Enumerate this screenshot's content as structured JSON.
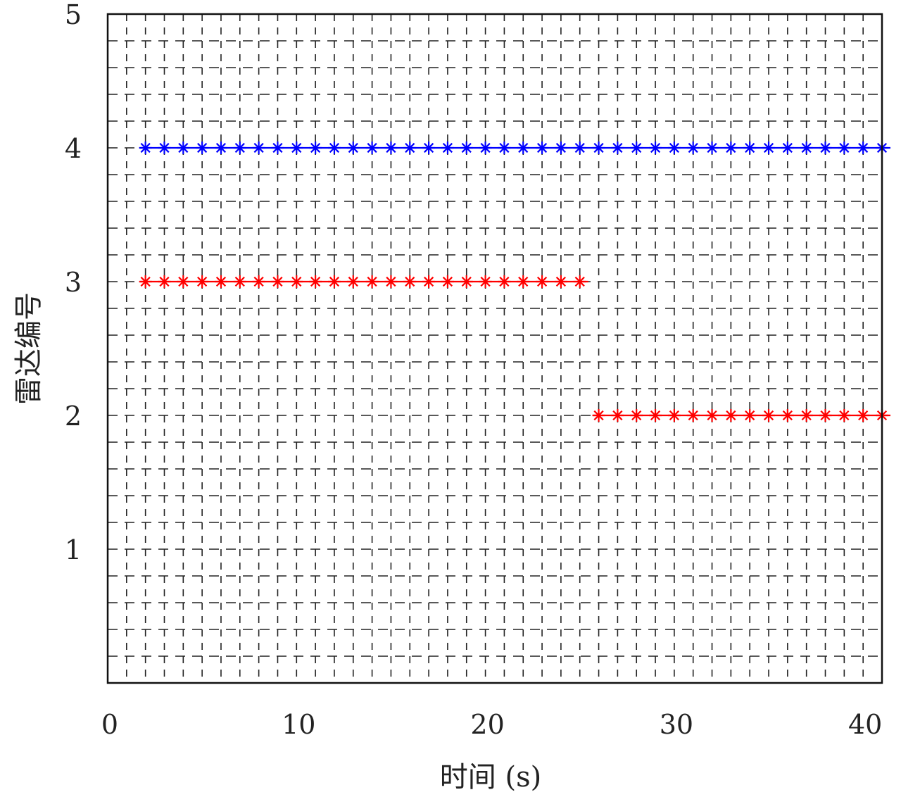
{
  "chart_data": {
    "type": "scatter",
    "title": "",
    "xlabel": "时间 (s)",
    "ylabel": "雷达编号",
    "xlim": [
      0,
      41
    ],
    "ylim": [
      0,
      5
    ],
    "xticks": [
      "0",
      "10",
      "20",
      "30",
      "40"
    ],
    "yticks": [
      "1",
      "2",
      "3",
      "4",
      "5"
    ],
    "grid": true,
    "grid_style": "dashed",
    "marker": "asterisk",
    "series": [
      {
        "color": "#0000ff",
        "y": 4,
        "x_start": 2,
        "x_end": 41,
        "x_step": 1
      },
      {
        "color": "#ff0000",
        "y": 3,
        "x_start": 2,
        "x_end": 25,
        "x_step": 1
      },
      {
        "color": "#ff0000",
        "y": 2,
        "x_start": 26,
        "x_end": 41,
        "x_step": 1
      }
    ]
  }
}
